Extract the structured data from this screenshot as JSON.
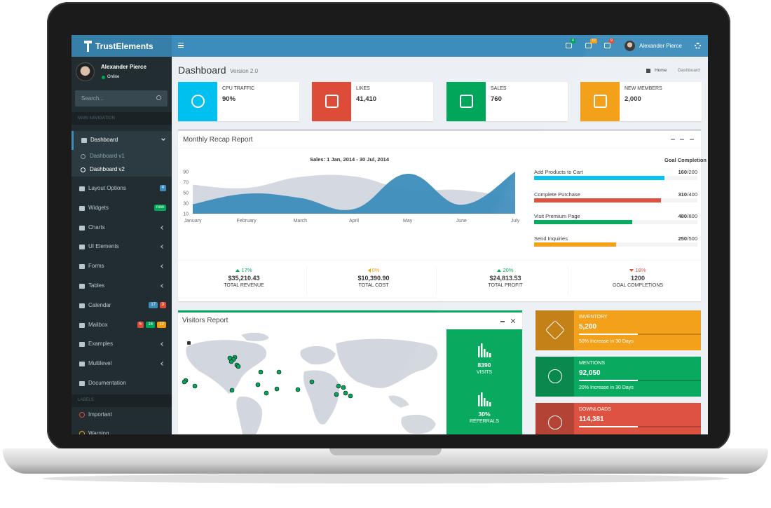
{
  "brand": "TrustElements",
  "header": {
    "badges": [
      "4",
      "10",
      "9"
    ],
    "user": "Alexander Pierce"
  },
  "sidebar": {
    "user": "Alexander Pierce",
    "status": "Online",
    "search_placeholder": "Search...",
    "section": "MAIN NAVIGATION",
    "items": [
      {
        "label": "Dashboard",
        "children": [
          "Dashboard v1",
          "Dashboard v2"
        ]
      },
      {
        "label": "Layout Options",
        "badges": [
          {
            "text": "4",
            "color": "#3c8dbc"
          }
        ]
      },
      {
        "label": "Widgets",
        "badges": [
          {
            "text": "new",
            "color": "#00a65a"
          }
        ]
      },
      {
        "label": "Charts"
      },
      {
        "label": "UI Elements"
      },
      {
        "label": "Forms"
      },
      {
        "label": "Tables"
      },
      {
        "label": "Calendar",
        "badges": [
          {
            "text": "17",
            "color": "#3c8dbc"
          },
          {
            "text": "3",
            "color": "#dd4b39"
          }
        ]
      },
      {
        "label": "Mailbox",
        "badges": [
          {
            "text": "5",
            "color": "#dd4b39"
          },
          {
            "text": "16",
            "color": "#00a65a"
          },
          {
            "text": "12",
            "color": "#f39c12"
          }
        ]
      },
      {
        "label": "Examples"
      },
      {
        "label": "Multilevel"
      },
      {
        "label": "Documentation"
      }
    ],
    "labels_section": "LABELS",
    "labels": [
      {
        "label": "Important",
        "color": "#dd4b39"
      },
      {
        "label": "Warning",
        "color": "#f39c12"
      }
    ]
  },
  "page": {
    "title": "Dashboard",
    "subtitle": "Version 2.0",
    "breadcrumb": [
      "Home",
      "Dashboard"
    ]
  },
  "info_boxes": [
    {
      "label": "CPU TRAFFIC",
      "value": "90%",
      "color": "#00c0ef"
    },
    {
      "label": "LIKES",
      "value": "41,410",
      "color": "#dd4b39"
    },
    {
      "label": "SALES",
      "value": "760",
      "color": "#00a65a"
    },
    {
      "label": "NEW MEMBERS",
      "value": "2,000",
      "color": "#f39c12"
    }
  ],
  "recap": {
    "title": "Monthly Recap Report",
    "goals": {
      "title": "Goal Completion",
      "items": [
        {
          "label": "Add Products to Cart",
          "value": 160,
          "total": 200,
          "total_label": "/200",
          "color": "#00c0ef"
        },
        {
          "label": "Complete Purchase",
          "value": 310,
          "total": 400,
          "total_label": "/400",
          "color": "#dd4b39"
        },
        {
          "label": "Visit Premium Page",
          "value": 480,
          "total": 800,
          "total_label": "/800",
          "color": "#00a65a"
        },
        {
          "label": "Send Inquiries",
          "value": 250,
          "total": 500,
          "total_label": "/500",
          "color": "#f39c12"
        }
      ]
    },
    "stats": [
      {
        "change": "17%",
        "direction": "up",
        "value": "$35,210.43",
        "label": "TOTAL REVENUE"
      },
      {
        "change": "0%",
        "direction": "left",
        "value": "$10,390.90",
        "label": "TOTAL COST"
      },
      {
        "change": "20%",
        "direction": "up",
        "value": "$24,813.53",
        "label": "TOTAL PROFIT"
      },
      {
        "change": "18%",
        "direction": "down",
        "value": "1200",
        "label": "GOAL COMPLETIONS"
      }
    ]
  },
  "chart_data": {
    "type": "area",
    "title": "Sales: 1 Jan, 2014 - 30 Jul, 2014",
    "categories": [
      "January",
      "February",
      "March",
      "April",
      "May",
      "June",
      "July"
    ],
    "series": [
      {
        "color": "#d2d6de",
        "values": [
          65,
          59,
          80,
          81,
          56,
          55,
          40
        ]
      },
      {
        "color": "#3c8dbc",
        "values": [
          28,
          48,
          40,
          19,
          86,
          27,
          90
        ]
      }
    ],
    "ylim": [
      10,
      90
    ],
    "yticks": [
      10,
      30,
      50,
      70,
      90
    ],
    "grid": false
  },
  "visitors": {
    "title": "Visitors Report",
    "stats": [
      {
        "value": "8390",
        "label": "VISITS"
      },
      {
        "value": "30%",
        "label": "REFERRALS"
      }
    ]
  },
  "side_boxes": [
    {
      "label": "INVENTORY",
      "value": "5,200",
      "note": "50% Increase in 30 Days",
      "color": "#f39c12"
    },
    {
      "label": "MENTIONS",
      "value": "92,050",
      "note": "20% Increase in 30 Days",
      "color": "#00a65a"
    },
    {
      "label": "DOWNLOADS",
      "value": "114,381",
      "color": "#dd4b39"
    }
  ]
}
